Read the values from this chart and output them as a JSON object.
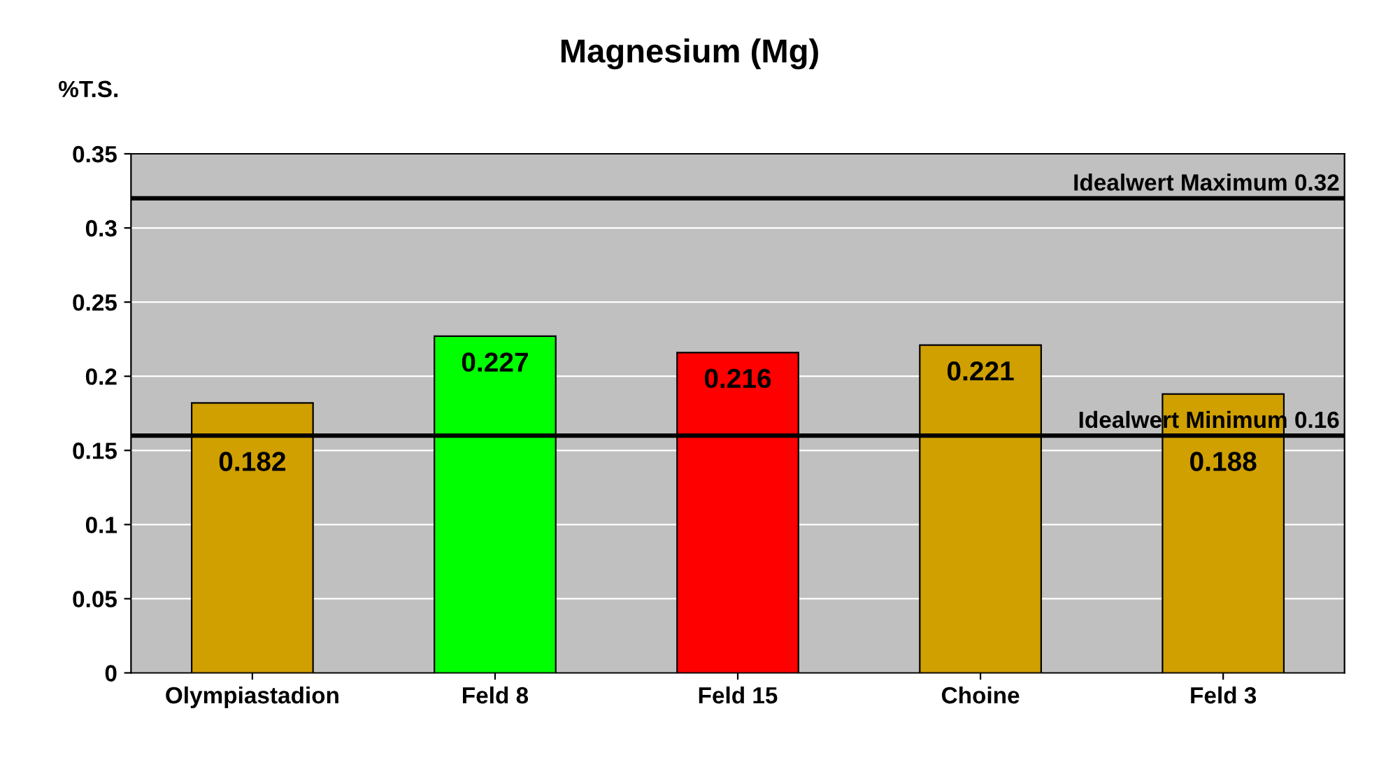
{
  "chart_data": {
    "type": "bar",
    "title": "Magnesium (Mg)",
    "ylabel": "%T.S.",
    "categories": [
      "Olympiastadion",
      "Feld 8",
      "Feld 15",
      "Choine",
      "Feld 3"
    ],
    "values": [
      0.182,
      0.227,
      0.216,
      0.221,
      0.188
    ],
    "colors": [
      "#d0a000",
      "#00ff00",
      "#ff0000",
      "#d0a000",
      "#d0a000"
    ],
    "ylim": [
      0,
      0.35
    ],
    "yticks": [
      0,
      0.05,
      0.1,
      0.15,
      0.2,
      0.25,
      0.3,
      0.35
    ],
    "grid": "y",
    "data_labels": true,
    "ref_lines": [
      {
        "axis": "y",
        "value": 0.32,
        "label": "Idealwert Maximum 0.32",
        "color": "#000000"
      },
      {
        "axis": "y",
        "value": 0.16,
        "label": "Idealwert Minimum 0.16",
        "color": "#000000"
      }
    ]
  }
}
